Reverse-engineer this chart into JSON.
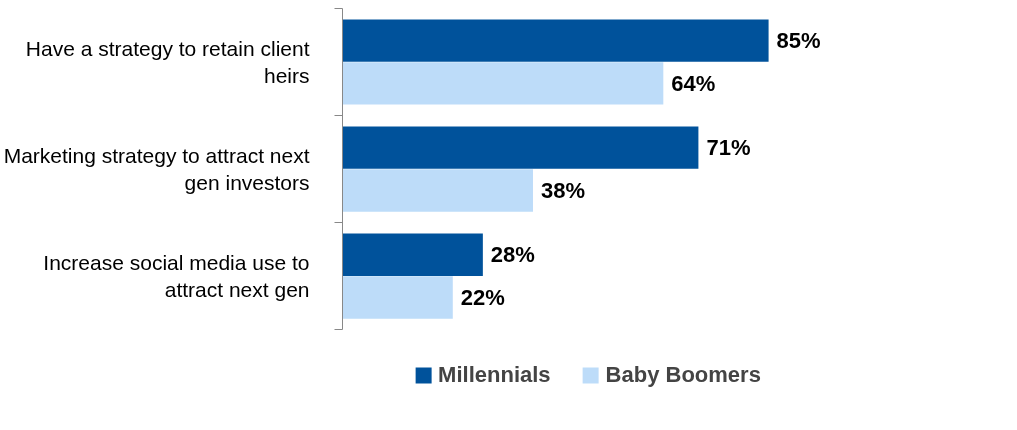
{
  "chart_data": {
    "type": "bar",
    "orientation": "horizontal",
    "categories": [
      "Have a strategy to retain client heirs",
      "Marketing strategy to attract next gen investors",
      "Increase social media use to attract next gen"
    ],
    "series": [
      {
        "name": "Millennials",
        "color": "#00529b",
        "values": [
          85,
          71,
          28
        ],
        "value_labels": [
          "85%",
          "71%",
          "28%"
        ]
      },
      {
        "name": "Baby Boomers",
        "color": "#bddcf9",
        "values": [
          64,
          38,
          22
        ],
        "value_labels": [
          "64%",
          "38%",
          "22%"
        ]
      }
    ],
    "grid": false,
    "legend": "bottom"
  }
}
